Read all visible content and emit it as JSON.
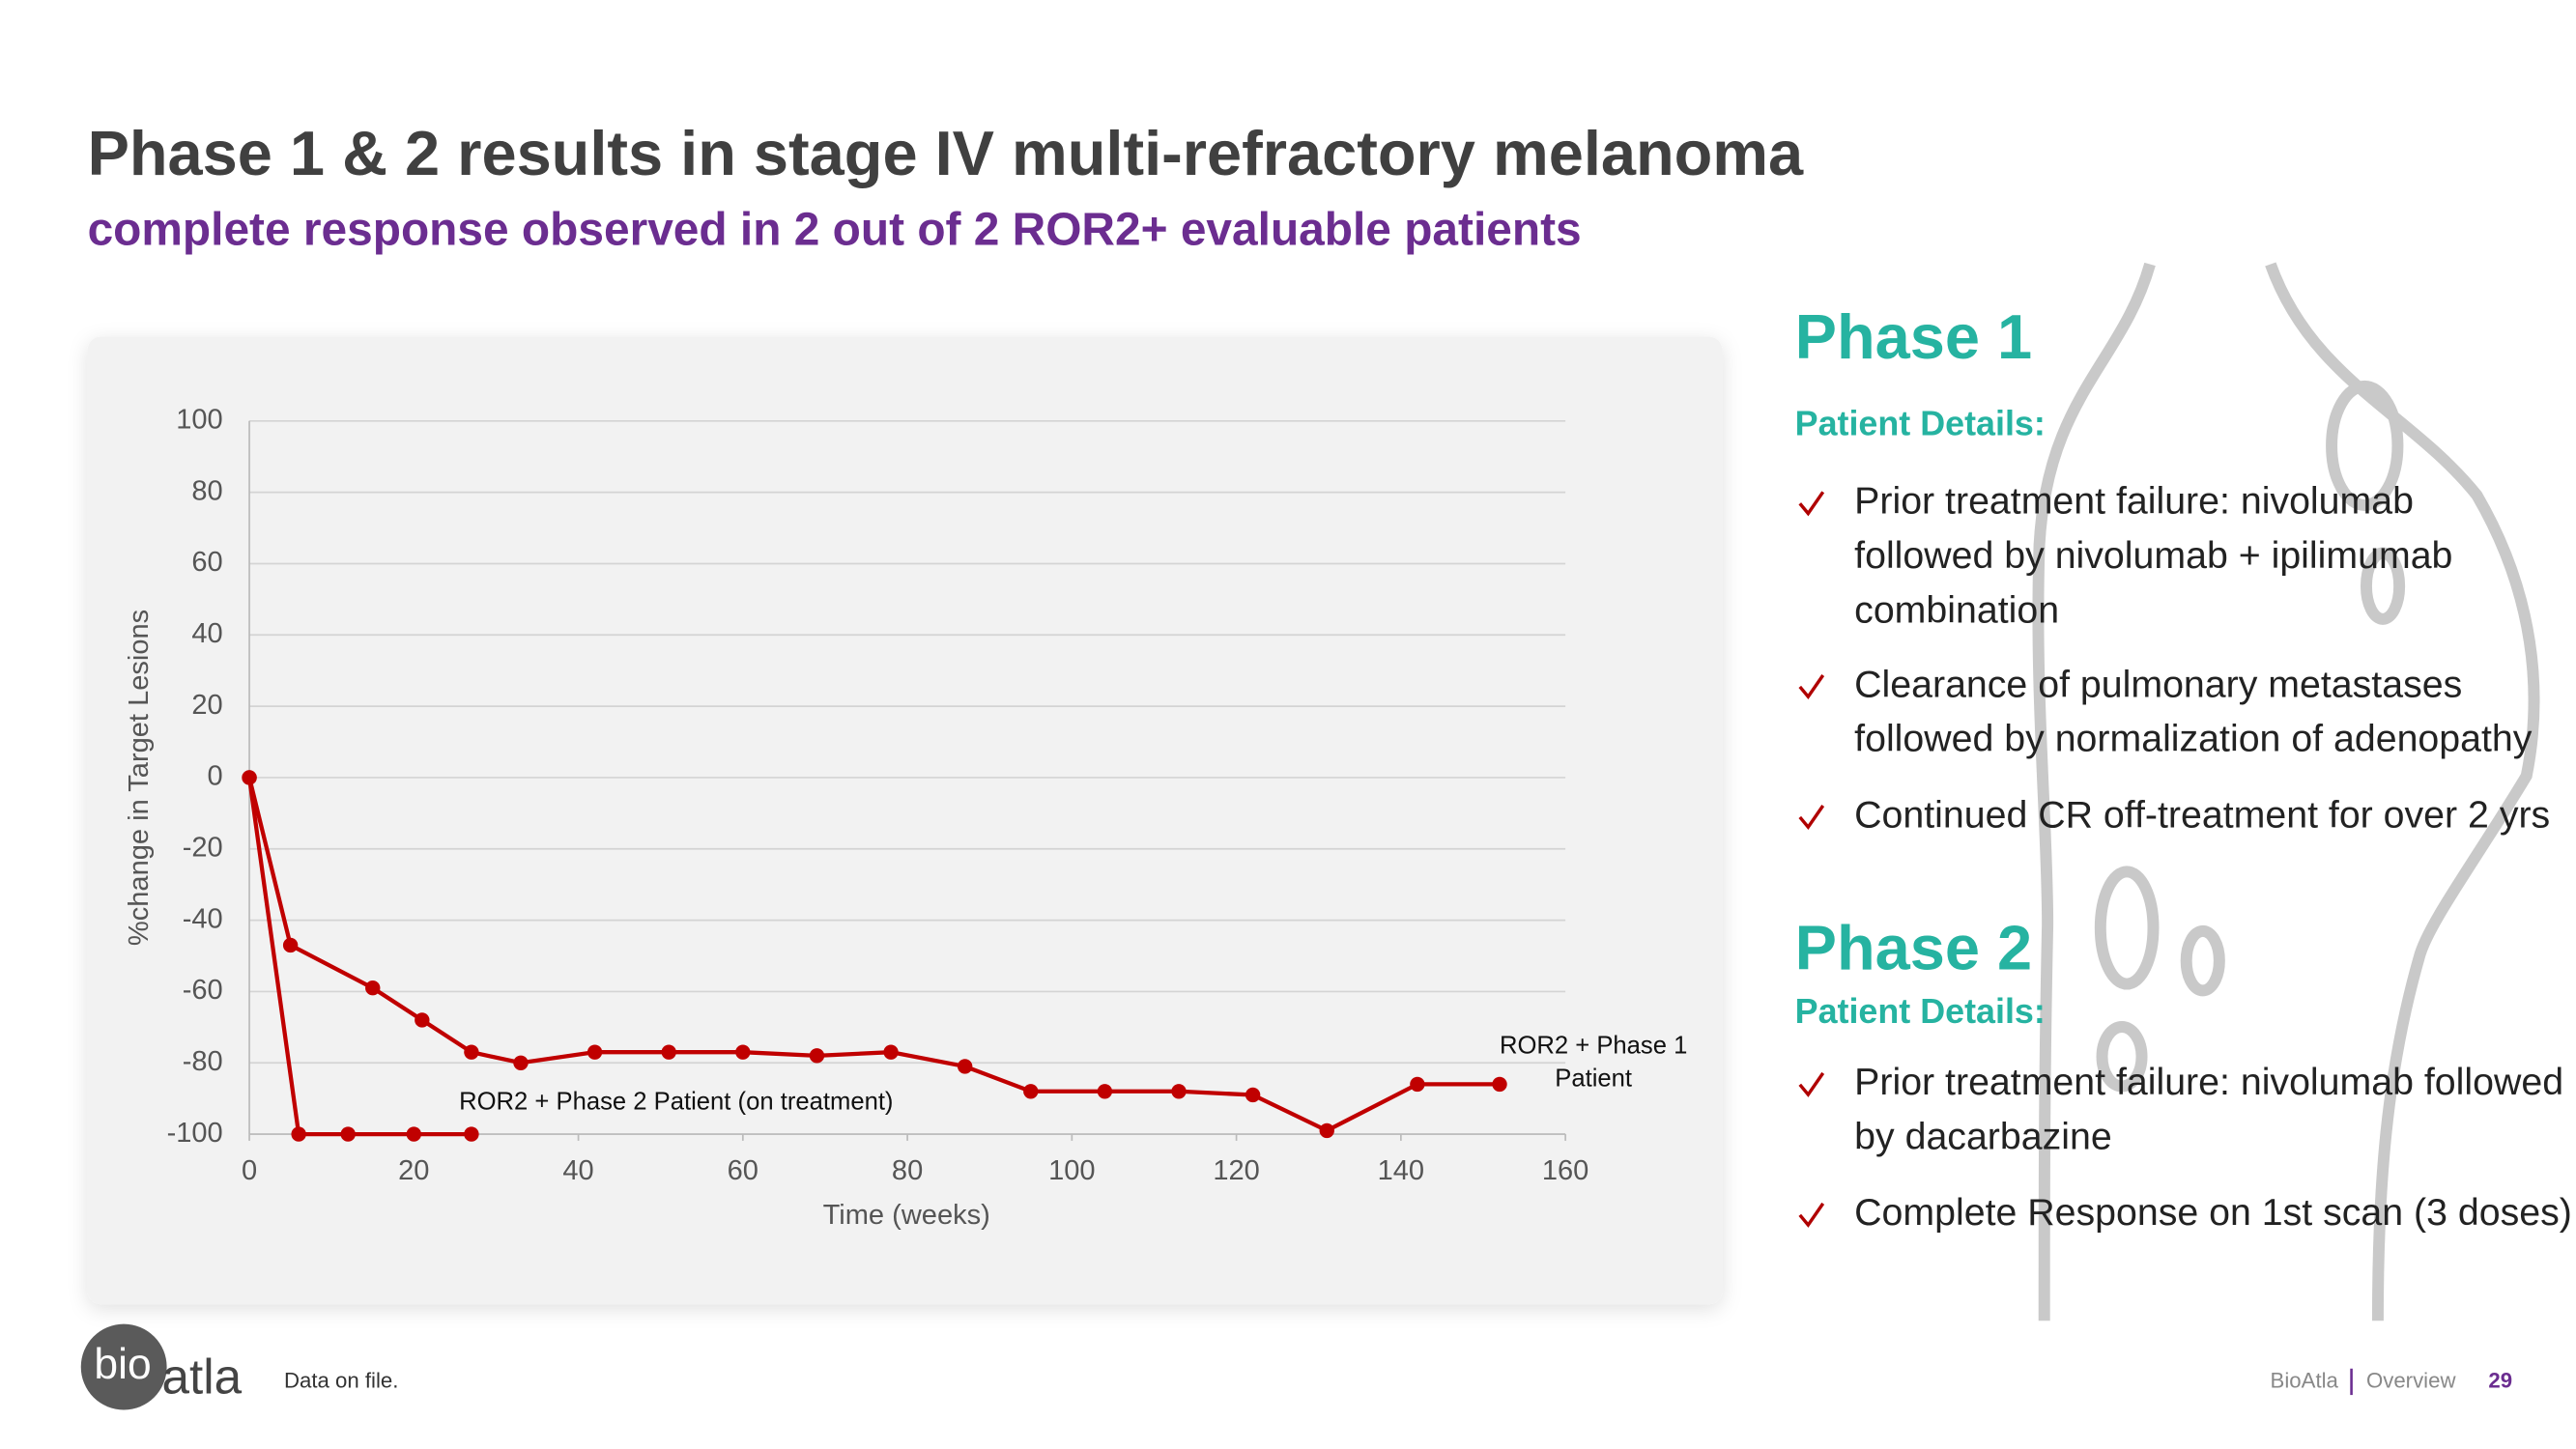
{
  "header": {
    "title": "Phase 1 & 2 results in stage IV multi-refractory melanoma",
    "subtitle": "complete response observed in 2 out of 2 ROR2+ evaluable patients"
  },
  "chart_data": {
    "type": "line",
    "x_label": "Time (weeks)",
    "y_label": "%change in Target Lesions",
    "series": [
      {
        "color": "#c00000",
        "x": [
          0,
          5,
          15,
          21,
          27,
          33,
          42,
          51,
          60,
          69,
          78,
          87,
          95,
          104,
          113,
          122,
          131,
          142,
          152
        ],
        "values": [
          0,
          -47,
          -59,
          -68,
          -77,
          -80,
          -77,
          -77,
          -77,
          -78,
          -77,
          -81,
          -88,
          -88,
          -88,
          -89,
          -99,
          -86,
          -86
        ]
      },
      {
        "color": "#c00000",
        "x": [
          0,
          6,
          12,
          20,
          27
        ],
        "values": [
          0,
          -100,
          -100,
          -100,
          -100
        ]
      }
    ],
    "annotations": [
      {
        "lines": [
          "ROR2 + Phase 1",
          "Patient"
        ]
      },
      {
        "lines": [
          "ROR2 + Phase 2 Patient (on treatment)"
        ]
      }
    ],
    "xlim": [
      0,
      160
    ],
    "xticks": [
      0,
      20,
      40,
      60,
      80,
      100,
      120,
      140,
      160
    ],
    "ylim": [
      -100,
      100
    ],
    "yticks": [
      -100,
      -80,
      -60,
      -40,
      -20,
      0,
      20,
      40,
      60,
      80,
      100
    ],
    "grid": true
  },
  "panel": {
    "phase1": {
      "title": "Phase 1",
      "details": "Patient Details:",
      "bullets": [
        [
          "Prior treatment failure: nivolumab",
          "followed by nivolumab + ipilimumab",
          "combination"
        ],
        [
          "Clearance of pulmonary metastases",
          "followed by normalization of adenopathy"
        ],
        [
          "Continued CR off-treatment for over 2 yrs"
        ]
      ]
    },
    "phase2": {
      "title": "Phase 2",
      "details": "Patient Details:",
      "bullets": [
        [
          "Prior treatment failure: nivolumab followed",
          "by dacarbazine"
        ],
        [
          "Complete Response on 1st scan (3 doses)"
        ]
      ]
    }
  },
  "footer": {
    "logo_bio": "bio",
    "logo_atla": "atla",
    "note": "Data on file.",
    "brand": "BioAtla",
    "section": "Overview",
    "page": "29"
  }
}
